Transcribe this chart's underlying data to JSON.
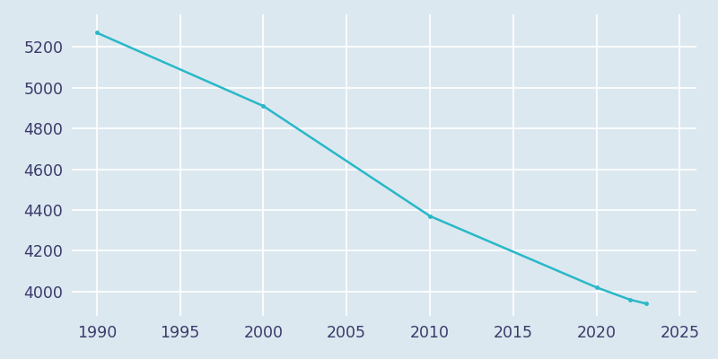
{
  "years": [
    1990,
    2000,
    2010,
    2020,
    2022,
    2023
  ],
  "population": [
    5270,
    4910,
    4370,
    4020,
    3960,
    3940
  ],
  "line_color": "#29b8c8",
  "marker": "o",
  "marker_size": 3.5,
  "background_color": "#dce8f0",
  "grid_color": "#ffffff",
  "xlim": [
    1988.5,
    2026
  ],
  "ylim": [
    3880,
    5360
  ],
  "xticks": [
    1990,
    1995,
    2000,
    2005,
    2010,
    2015,
    2020,
    2025
  ],
  "yticks": [
    4000,
    4200,
    4400,
    4600,
    4800,
    5000,
    5200
  ],
  "tick_label_color": "#3a3a6a",
  "tick_fontsize": 12.5,
  "linewidth": 1.8
}
